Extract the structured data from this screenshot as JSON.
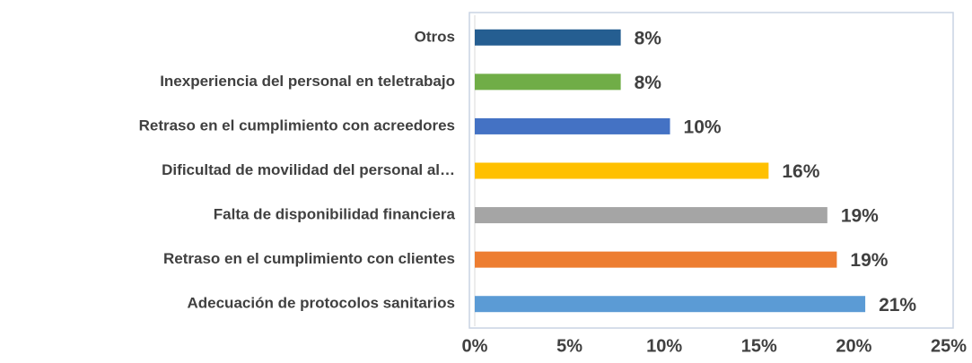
{
  "chart_data": {
    "type": "bar",
    "orientation": "horizontal",
    "categories": [
      "Otros",
      "Inexperiencia del personal en teletrabajo",
      "Retraso en el cumplimiento con acreedores",
      "Dificultad de movilidad del personal al…",
      "Falta de disponibilidad financiera",
      "Retraso en el cumplimiento con clientes",
      "Adecuación de protocolos sanitarios"
    ],
    "values": [
      7.7,
      7.7,
      10.3,
      15.5,
      18.6,
      19.1,
      20.6
    ],
    "value_labels": [
      "8%",
      "8%",
      "10%",
      "16%",
      "19%",
      "19%",
      "21%"
    ],
    "colors": [
      "#255e91",
      "#70ad47",
      "#4472c4",
      "#ffc000",
      "#a5a5a5",
      "#ed7d31",
      "#5b9bd5"
    ],
    "xlim": [
      0,
      25
    ],
    "xticks": [
      {
        "value": 0,
        "label": "0%"
      },
      {
        "value": 5,
        "label": "5%"
      },
      {
        "value": 10,
        "label": "10%"
      },
      {
        "value": 15,
        "label": "15%"
      },
      {
        "value": 20,
        "label": "20%"
      },
      {
        "value": 25,
        "label": "25%"
      }
    ]
  }
}
